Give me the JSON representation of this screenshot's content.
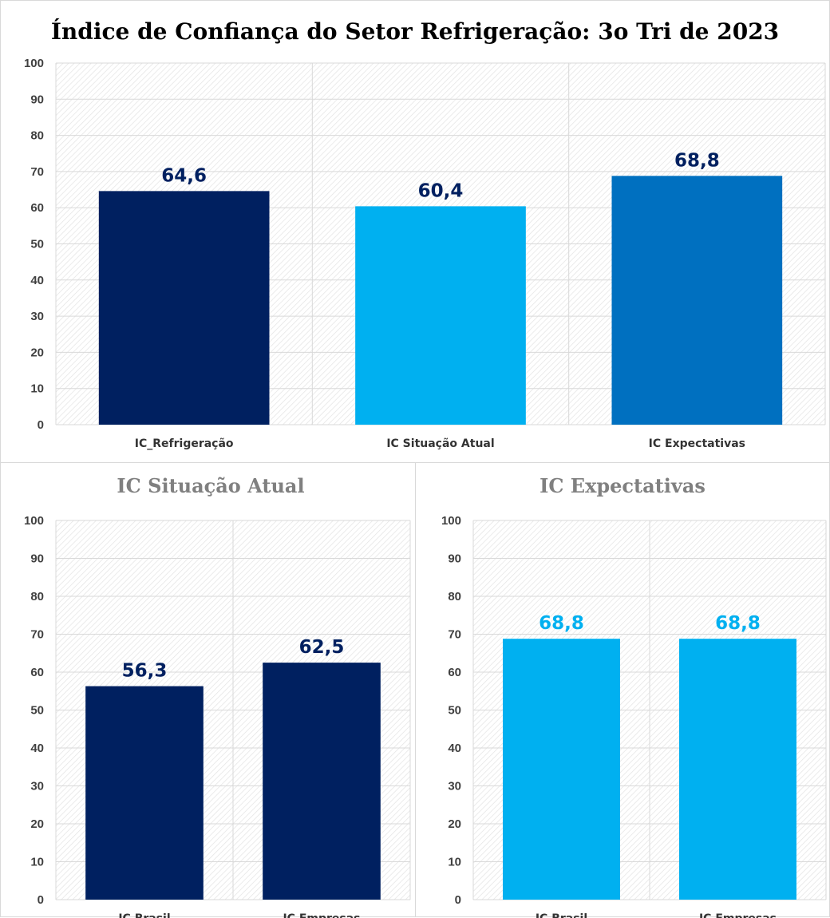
{
  "colors": {
    "navy": "#002060",
    "sky": "#00B0F0",
    "blue": "#0070C0",
    "label_navy": "#002060",
    "label_sky": "#00B0F0"
  },
  "chart_data": [
    {
      "type": "bar",
      "title": "Índice de Confiança do Setor Refrigeração: 3o Tri de 2023",
      "categories": [
        "IC_Refrigeração",
        "IC Situação Atual",
        "IC Expectativas"
      ],
      "values": [
        64.6,
        60.4,
        68.8
      ],
      "value_labels": [
        "64,6",
        "60,4",
        "68,8"
      ],
      "bar_colors": [
        "#002060",
        "#00B0F0",
        "#0070C0"
      ],
      "label_color": "#002060",
      "ylim": [
        0,
        100
      ],
      "yticks": [
        "0",
        "10",
        "20",
        "30",
        "40",
        "50",
        "60",
        "70",
        "80",
        "90",
        "100"
      ],
      "grid": true
    },
    {
      "type": "bar",
      "title": "IC Situação Atual",
      "categories": [
        "IC Brasil",
        "IC Empresas"
      ],
      "values": [
        56.3,
        62.5
      ],
      "value_labels": [
        "56,3",
        "62,5"
      ],
      "bar_colors": [
        "#002060",
        "#002060"
      ],
      "label_color": "#002060",
      "ylim": [
        0,
        100
      ],
      "yticks": [
        "0",
        "10",
        "20",
        "30",
        "40",
        "50",
        "60",
        "70",
        "80",
        "90",
        "100"
      ],
      "grid": true
    },
    {
      "type": "bar",
      "title": "IC Expectativas",
      "categories": [
        "IC Brasil",
        "IC Empresas"
      ],
      "values": [
        68.8,
        68.8
      ],
      "value_labels": [
        "68,8",
        "68,8"
      ],
      "bar_colors": [
        "#00B0F0",
        "#00B0F0"
      ],
      "label_color": "#00B0F0",
      "ylim": [
        0,
        100
      ],
      "yticks": [
        "0",
        "10",
        "20",
        "30",
        "40",
        "50",
        "60",
        "70",
        "80",
        "90",
        "100"
      ],
      "grid": true
    }
  ]
}
